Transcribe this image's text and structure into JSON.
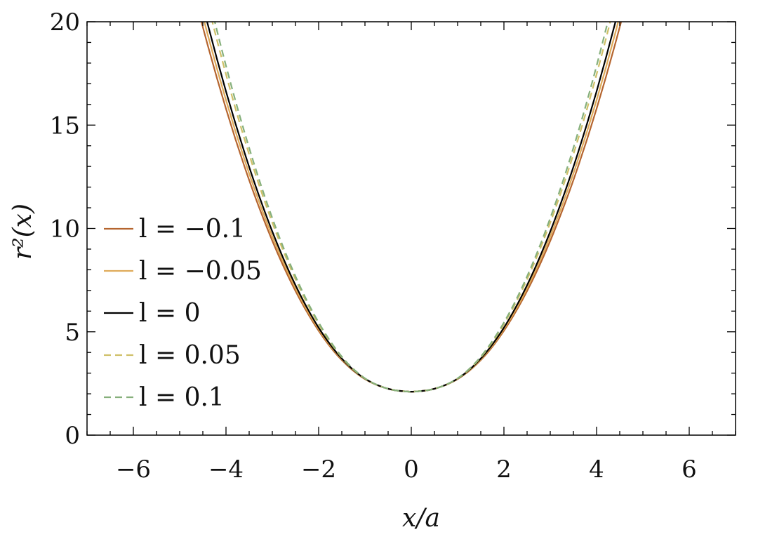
{
  "chart_data": {
    "type": "line",
    "title": "",
    "xlabel": "x/a",
    "ylabel": "r²(x)",
    "xlim": [
      -7,
      7
    ],
    "ylim": [
      0,
      20
    ],
    "xticks": [
      -6,
      -4,
      -2,
      0,
      2,
      4,
      6
    ],
    "yticks": [
      0,
      5,
      10,
      15,
      20
    ],
    "xtick_labels": [
      "−6",
      "−4",
      "−2",
      "0",
      "2",
      "4",
      "6"
    ],
    "ytick_labels": [
      "0",
      "5",
      "10",
      "15",
      "20"
    ],
    "grid": false,
    "legend_position": "left",
    "x": [
      -4.6,
      -4.4,
      -4.2,
      -4.0,
      -3.8,
      -3.6,
      -3.4,
      -3.2,
      -3.0,
      -2.8,
      -2.6,
      -2.4,
      -2.2,
      -2.0,
      -1.8,
      -1.6,
      -1.4,
      -1.2,
      -1.0,
      -0.8,
      -0.6,
      -0.4,
      -0.2,
      0.0,
      0.2,
      0.4,
      0.6,
      0.8,
      1.0,
      1.2,
      1.4,
      1.6,
      1.8,
      2.0,
      2.2,
      2.4,
      2.6,
      2.8,
      3.0,
      3.2,
      3.4,
      3.6,
      3.8,
      4.0,
      4.2,
      4.4,
      4.6
    ],
    "series": [
      {
        "name": "l = −0.1",
        "color": "#b5652f",
        "dashed": false,
        "values": [
          20.59,
          18.91,
          17.31,
          15.79,
          14.35,
          12.99,
          11.71,
          10.52,
          9.4,
          8.37,
          7.42,
          6.55,
          5.76,
          5.05,
          4.42,
          3.87,
          3.41,
          3.02,
          2.71,
          2.48,
          2.31,
          2.19,
          2.13,
          2.1,
          2.13,
          2.19,
          2.31,
          2.48,
          2.71,
          3.02,
          3.41,
          3.87,
          4.42,
          5.05,
          5.76,
          6.55,
          7.42,
          8.37,
          9.4,
          10.52,
          11.71,
          12.99,
          14.35,
          15.79,
          17.31,
          18.91,
          20.59
        ]
      },
      {
        "name": "l = −0.05",
        "color": "#dfab5a",
        "dashed": false,
        "values": [
          21.15,
          19.42,
          17.77,
          16.21,
          14.73,
          13.33,
          12.01,
          10.77,
          9.62,
          8.56,
          7.57,
          6.67,
          5.86,
          5.13,
          4.48,
          3.92,
          3.44,
          3.04,
          2.72,
          2.48,
          2.31,
          2.19,
          2.13,
          2.1,
          2.13,
          2.19,
          2.31,
          2.48,
          2.72,
          3.04,
          3.44,
          3.92,
          4.48,
          5.13,
          5.86,
          6.67,
          7.57,
          8.56,
          9.62,
          10.77,
          12.01,
          13.33,
          14.73,
          16.21,
          17.77,
          19.42,
          21.15
        ]
      },
      {
        "name": "l = 0",
        "color": "#000000",
        "dashed": false,
        "values": [
          21.72,
          19.93,
          18.24,
          16.63,
          15.11,
          13.67,
          12.31,
          11.04,
          9.85,
          8.75,
          7.73,
          6.8,
          5.96,
          5.2,
          4.54,
          3.96,
          3.47,
          3.06,
          2.73,
          2.49,
          2.31,
          2.19,
          2.13,
          2.1,
          2.13,
          2.19,
          2.31,
          2.49,
          2.73,
          3.06,
          3.47,
          3.96,
          4.54,
          5.2,
          5.96,
          6.8,
          7.73,
          8.75,
          9.85,
          11.04,
          12.31,
          13.67,
          15.11,
          16.63,
          18.24,
          19.93,
          21.72
        ]
      },
      {
        "name": "l = 0.05",
        "color": "#cfc068",
        "dashed": true,
        "values": [
          22.84,
          20.95,
          19.16,
          17.46,
          15.84,
          14.32,
          12.88,
          11.54,
          10.28,
          9.12,
          8.04,
          7.06,
          6.17,
          5.37,
          4.66,
          4.04,
          3.51,
          3.08,
          2.74,
          2.49,
          2.31,
          2.19,
          2.13,
          2.1,
          2.13,
          2.19,
          2.31,
          2.49,
          2.74,
          3.08,
          3.51,
          4.04,
          4.66,
          5.37,
          6.17,
          7.06,
          8.04,
          9.12,
          10.28,
          11.54,
          12.88,
          14.32,
          15.84,
          17.46,
          19.16,
          20.95,
          22.84
        ]
      },
      {
        "name": "l = 0.1",
        "color": "#86b07c",
        "dashed": true,
        "values": [
          23.4,
          21.46,
          19.62,
          17.87,
          16.21,
          14.65,
          13.17,
          11.79,
          10.5,
          9.3,
          8.2,
          7.19,
          6.27,
          5.45,
          4.72,
          4.08,
          3.54,
          3.1,
          2.75,
          2.49,
          2.31,
          2.19,
          2.13,
          2.1,
          2.13,
          2.19,
          2.31,
          2.49,
          2.75,
          3.1,
          3.54,
          4.08,
          4.72,
          5.45,
          6.27,
          7.19,
          8.2,
          9.3,
          10.5,
          11.79,
          13.17,
          14.65,
          16.21,
          17.87,
          19.62,
          21.46,
          23.4
        ]
      }
    ]
  }
}
